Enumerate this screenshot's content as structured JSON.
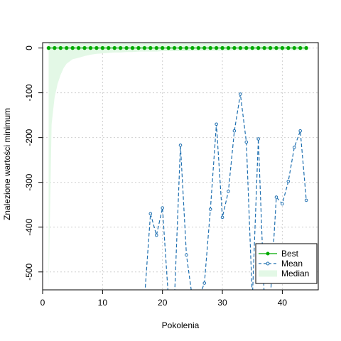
{
  "chart_data": {
    "type": "line",
    "title": "",
    "xlabel": "Pokolenia",
    "ylabel": "Znalezione wartości minimum",
    "xlim": [
      0,
      46
    ],
    "ylim": [
      -540,
      12
    ],
    "x_ticks": [
      0,
      10,
      20,
      30,
      40
    ],
    "y_ticks": [
      0,
      -100,
      -200,
      -300,
      -400,
      -500
    ],
    "x_tick_labels": [
      "0",
      "10",
      "20",
      "30",
      "40"
    ],
    "y_tick_labels": [
      "0",
      "-100",
      "-200",
      "-300",
      "-400",
      "-500"
    ],
    "grid": true,
    "legend_position": "bottom-right",
    "series": [
      {
        "name": "Best",
        "style": "solid-with-points",
        "color": "#00aa00",
        "x": [
          1,
          2,
          3,
          4,
          5,
          6,
          7,
          8,
          9,
          10,
          11,
          12,
          13,
          14,
          15,
          16,
          17,
          18,
          19,
          20,
          21,
          22,
          23,
          24,
          25,
          26,
          27,
          28,
          29,
          30,
          31,
          32,
          33,
          34,
          35,
          36,
          37,
          38,
          39,
          40,
          41,
          42,
          43,
          44
        ],
        "values": [
          0,
          0,
          0,
          0,
          0,
          0,
          0,
          0,
          0,
          0,
          0,
          0,
          0,
          0,
          0,
          0,
          0,
          0,
          0,
          0,
          0,
          0,
          0,
          0,
          0,
          0,
          0,
          0,
          0,
          0,
          0,
          0,
          0,
          0,
          0,
          0,
          0,
          0,
          0,
          0,
          0,
          0,
          0,
          0
        ]
      },
      {
        "name": "Mean",
        "style": "dashed-with-points",
        "color": "#1e6fb0",
        "x": [
          17,
          18,
          19,
          20,
          21,
          22,
          23,
          24,
          25,
          26,
          27,
          28,
          29,
          30,
          31,
          32,
          33,
          34,
          35,
          36,
          37,
          38,
          39,
          40,
          41,
          42,
          43,
          44
        ],
        "values": [
          -560,
          -370,
          -418,
          -357,
          -560,
          -560,
          -217,
          -462,
          -560,
          -560,
          -525,
          -360,
          -170,
          -378,
          -320,
          -185,
          -103,
          -210,
          -560,
          -203,
          -560,
          -560,
          -333,
          -348,
          -298,
          -222,
          -185,
          -340
        ]
      },
      {
        "name": "Median",
        "style": "area",
        "color": "#e3f8e6",
        "x": [
          1,
          1.5,
          2,
          2.5,
          3,
          3.5,
          4,
          5,
          6,
          7,
          8,
          9,
          10,
          11,
          12,
          13,
          14,
          15,
          16,
          17,
          18,
          19,
          20,
          21,
          22,
          23,
          24,
          25,
          26,
          27,
          28,
          29,
          30,
          31,
          32,
          33,
          34,
          35,
          36,
          37,
          38,
          39,
          40,
          41,
          42,
          43,
          44
        ],
        "values": [
          -540,
          -170,
          -110,
          -80,
          -60,
          -45,
          -35,
          -25,
          -22,
          -18,
          -15,
          -13,
          -12,
          -11,
          -10,
          -10,
          -9,
          -9,
          -8,
          -8,
          -8,
          -8,
          -7,
          -7,
          -7,
          -7,
          -7,
          -6,
          -6,
          -6,
          -6,
          -6,
          -6,
          -6,
          -5,
          -5,
          -5,
          -5,
          -5,
          -5,
          -5,
          -5,
          -5,
          -5,
          -5,
          -5,
          -5
        ]
      }
    ],
    "legend": [
      "Best",
      "Mean",
      "Median"
    ]
  }
}
